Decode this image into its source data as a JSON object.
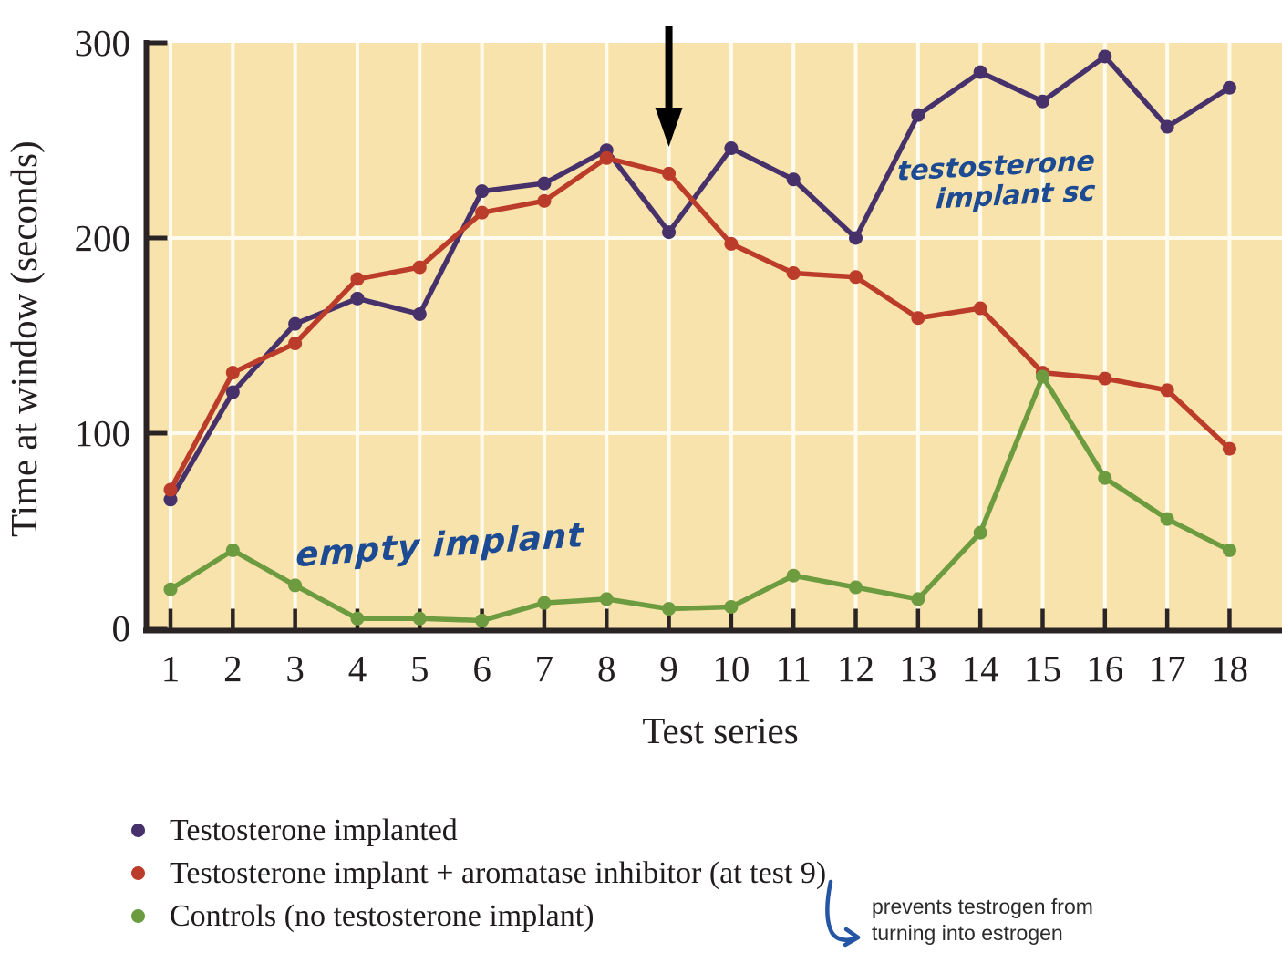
{
  "chart_data": {
    "type": "line",
    "title": "",
    "xlabel": "Test series",
    "ylabel": "Time at window (seconds)",
    "x_ticks": [
      "1",
      "2",
      "3",
      "4",
      "5",
      "6",
      "7",
      "8",
      "9",
      "10",
      "11",
      "12",
      "13",
      "14",
      "15",
      "16",
      "17",
      "18"
    ],
    "y_ticks": [
      "0",
      "100",
      "200",
      "300"
    ],
    "y_tick_values": [
      0,
      100,
      200,
      300
    ],
    "ylim": [
      0,
      300
    ],
    "gridline_values": [
      100,
      200
    ],
    "grid": "on",
    "legend_position": "bottom-left",
    "plot_background": "#F9E3AC",
    "gridline_color": "#FFFCEF",
    "axis_color": "#2A2424",
    "tick_label_color": "#231F20",
    "series": [
      {
        "name": "Testosterone implanted",
        "color": "#46316B",
        "values": [
          66,
          121,
          156,
          169,
          161,
          224,
          228,
          245,
          203,
          246,
          230,
          200,
          263,
          285,
          270,
          293,
          257,
          277
        ]
      },
      {
        "name": "Testosterone implant + aromatase inhibitor (at test 9)",
        "color": "#BC3C2B",
        "values": [
          71,
          131,
          146,
          179,
          185,
          213,
          219,
          241,
          233,
          197,
          182,
          180,
          159,
          164,
          131,
          128,
          122,
          92
        ]
      },
      {
        "name": "Controls (no testosterone implant)",
        "color": "#6D9C40",
        "values": [
          20,
          40,
          22,
          5,
          5,
          4,
          13,
          15,
          10,
          11,
          27,
          21,
          15,
          49,
          129,
          77,
          56,
          40
        ]
      }
    ],
    "event_arrow": {
      "at_x_tick": "9",
      "color": "#000000"
    }
  },
  "axis_titles": {
    "y": "Time at window (seconds)",
    "x": "Test series"
  },
  "annotations": {
    "testosterone_note": {
      "line1": "testosterone",
      "line2": "implant  sc",
      "ink": "#1C4A93"
    },
    "empty_implant_note": {
      "text": "empty implant",
      "ink": "#1C4A93"
    },
    "aromatase_note": {
      "line1": "prevents testrogen from",
      "line2": "turning into estrogen",
      "color": "#2B2B2B",
      "arrow_ink": "#2456A4"
    }
  }
}
